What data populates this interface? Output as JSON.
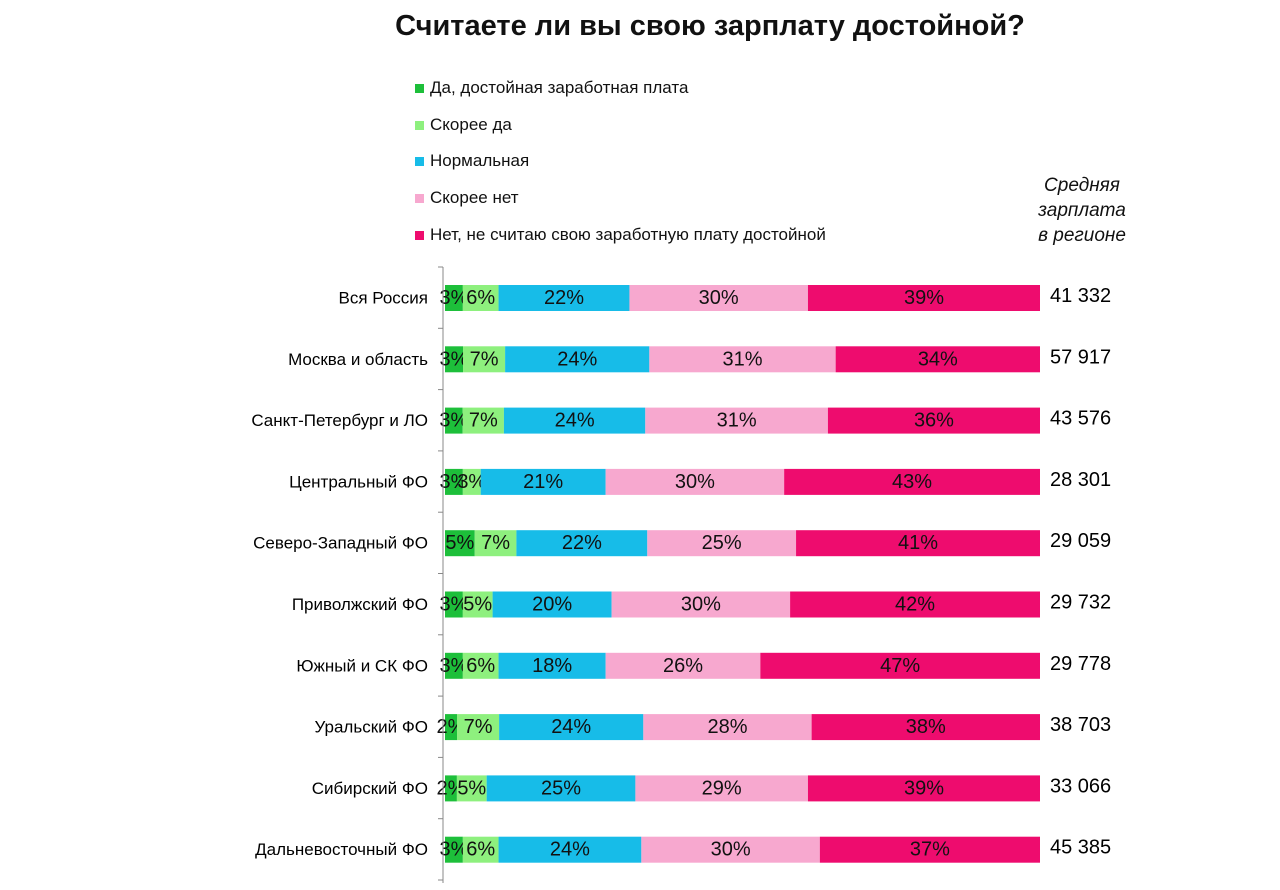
{
  "chart_data": {
    "type": "bar",
    "orientation": "horizontal",
    "stacked": true,
    "normalized": true,
    "title": "Считаете ли вы свою зарплату достойной?",
    "legend_position": "top",
    "series": [
      {
        "name": "Да, достойная заработная плата",
        "color": "#1dbf3a",
        "labels": [
          "3%",
          "3%",
          "3%",
          "3%",
          "5%",
          "3%",
          "3%",
          "2%",
          "2%",
          "3%"
        ],
        "values": [
          3,
          3,
          3,
          3,
          5,
          3,
          3,
          2,
          2,
          3
        ]
      },
      {
        "name": "Скорее да",
        "color": "#8ef07e",
        "labels": [
          "6%",
          "7%",
          "7%",
          "3%",
          "7%",
          "5%",
          "6%",
          "7%",
          "5%",
          "6%"
        ],
        "values": [
          6,
          7,
          7,
          3,
          7,
          5,
          6,
          7,
          5,
          6
        ]
      },
      {
        "name": "Нормальная",
        "color": "#17bce8",
        "labels": [
          "22%",
          "24%",
          "24%",
          "21%",
          "22%",
          "20%",
          "18%",
          "24%",
          "25%",
          "24%"
        ],
        "values": [
          22,
          24,
          24,
          21,
          22,
          20,
          18,
          24,
          25,
          24
        ]
      },
      {
        "name": "Скорее нет",
        "color": "#f7a8cf",
        "labels": [
          "30%",
          "31%",
          "31%",
          "30%",
          "25%",
          "30%",
          "26%",
          "28%",
          "29%",
          "30%"
        ],
        "values": [
          30,
          31,
          31,
          30,
          25,
          30,
          26,
          28,
          29,
          30
        ]
      },
      {
        "name": "Нет, не считаю свою заработную плату достойной",
        "color": "#ee0c6e",
        "labels": [
          "39%",
          "34%",
          "36%",
          "43%",
          "41%",
          "42%",
          "47%",
          "38%",
          "39%",
          "37%"
        ],
        "values": [
          39,
          34,
          36,
          43,
          41,
          42,
          47,
          38,
          39,
          37
        ]
      }
    ],
    "categories": [
      "Вся Россия",
      "Москва и область",
      "Санкт-Петербург и ЛО",
      "Центральный ФО",
      "Северо-Западный ФО",
      "Приволжский ФО",
      "Южный и СК ФО",
      "Уральский ФО",
      "Сибирский ФО",
      "Дальневосточный ФО"
    ],
    "salary_header": [
      "Средняя",
      "зарплата",
      "в регионе"
    ],
    "salaries": [
      "41 332",
      "57 917",
      "43 576",
      "28 301",
      "29 059",
      "29 732",
      "29 778",
      "38 703",
      "33 066",
      "45 385"
    ]
  }
}
